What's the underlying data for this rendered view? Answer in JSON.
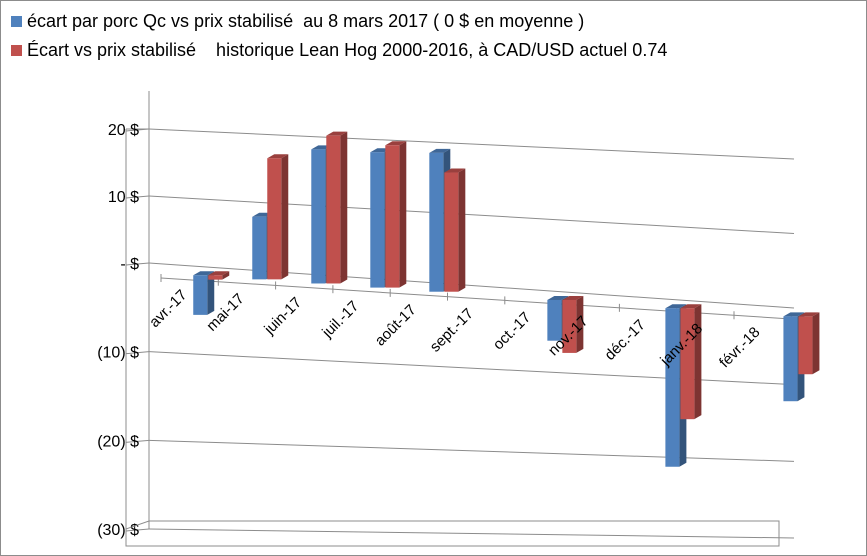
{
  "chart_data": {
    "type": "bar",
    "categories": [
      "avr.-17",
      "mai-17",
      "juin-17",
      "juil.-17",
      "août-17",
      "sept.-17",
      "oct.-17",
      "nov.-17",
      "déc.-17",
      "janv.-18",
      "févr.-18"
    ],
    "series": [
      {
        "name": "écart par porc Qc vs prix stabilisé  au 8 mars 2017 ( 0 $ en moyenne )",
        "color": "#4f81bd",
        "values": [
          -4.5,
          9.2,
          19.5,
          19.5,
          19.8,
          null,
          -5,
          null,
          -20,
          null,
          -11
        ]
      },
      {
        "name": "Écart vs prix stabilisé    historique Lean Hog 2000-2016, à CAD/USD actuel 0.74",
        "color": "#c0504d",
        "values": [
          -0.5,
          17.8,
          21.5,
          20.5,
          17,
          null,
          -6.5,
          null,
          -14,
          null,
          -7.5
        ]
      }
    ],
    "y_ticks": [
      20,
      10,
      0,
      -10,
      -20,
      -30
    ],
    "y_tick_labels": [
      "20  $",
      "10  $",
      "-    $",
      "(10) $",
      "(20) $",
      "(30) $"
    ],
    "ylim": [
      -30,
      20
    ],
    "grid": true,
    "legend_position": "top-left",
    "title": "",
    "xlabel": "",
    "ylabel": ""
  }
}
